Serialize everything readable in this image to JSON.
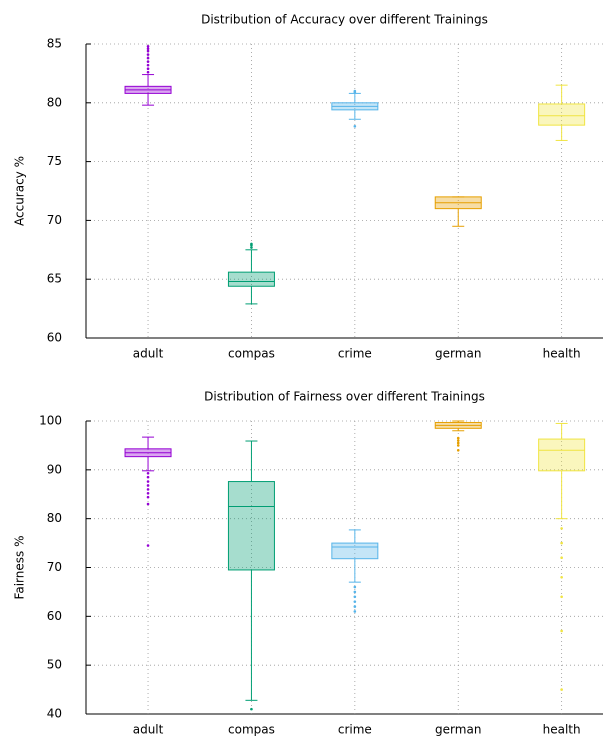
{
  "chart_data": [
    {
      "type": "box",
      "title": "Distribution of Accuracy over different Trainings",
      "ylabel": "Accuracy %",
      "categories": [
        "adult",
        "compas",
        "crime",
        "german",
        "health"
      ],
      "colors": [
        "#9400d3",
        "#009e73",
        "#56b4e9",
        "#e69f00",
        "#f0e442"
      ],
      "boxes": [
        {
          "min": 79.8,
          "q1": 80.8,
          "median": 81.1,
          "q3": 81.4,
          "max": 82.4,
          "outliers": [
            82.6,
            82.9,
            83.2,
            83.5,
            83.8,
            84.1,
            84.4,
            84.6,
            84.8
          ]
        },
        {
          "min": 62.9,
          "q1": 64.4,
          "median": 64.8,
          "q3": 65.6,
          "max": 67.5,
          "outliers": [
            67.7,
            67.9,
            68.0
          ]
        },
        {
          "min": 78.6,
          "q1": 79.4,
          "median": 79.7,
          "q3": 80.0,
          "max": 80.8,
          "outliers": [
            78.0,
            80.9,
            81.0
          ]
        },
        {
          "min": 69.5,
          "q1": 71.0,
          "median": 71.5,
          "q3": 72.0,
          "max": 72.0,
          "outliers": []
        },
        {
          "min": 76.8,
          "q1": 78.1,
          "median": 78.9,
          "q3": 79.9,
          "max": 81.5,
          "outliers": []
        }
      ],
      "ylim": [
        60,
        85
      ],
      "yticks": [
        60,
        65,
        70,
        75,
        80,
        85
      ],
      "grid": true
    },
    {
      "type": "box",
      "title": "Distribution of Fairness over different Trainings",
      "ylabel": "Fairness %",
      "categories": [
        "adult",
        "compas",
        "crime",
        "german",
        "health"
      ],
      "colors": [
        "#9400d3",
        "#009e73",
        "#56b4e9",
        "#e69f00",
        "#f0e442"
      ],
      "boxes": [
        {
          "min": 89.8,
          "q1": 92.7,
          "median": 93.5,
          "q3": 94.3,
          "max": 96.7,
          "outliers": [
            89.3,
            88.5,
            87.6,
            86.8,
            86,
            85.2,
            84.4,
            83,
            74.5
          ]
        },
        {
          "min": 42.8,
          "q1": 69.5,
          "median": 82.5,
          "q3": 87.6,
          "max": 95.9,
          "outliers": [
            41
          ]
        },
        {
          "min": 67,
          "q1": 71.8,
          "median": 74.2,
          "q3": 75.0,
          "max": 77.7,
          "outliers": [
            66,
            65,
            64,
            63,
            62,
            61
          ]
        },
        {
          "min": 98,
          "q1": 98.5,
          "median": 99.1,
          "q3": 99.7,
          "max": 100,
          "outliers": [
            96.5,
            96,
            95.5,
            95,
            94
          ]
        },
        {
          "min": 80,
          "q1": 89.8,
          "median": 94,
          "q3": 96.3,
          "max": 99.5,
          "outliers": [
            78,
            75,
            72,
            68,
            64,
            57,
            45
          ]
        }
      ],
      "ylim": [
        40,
        100
      ],
      "yticks": [
        40,
        50,
        60,
        70,
        80,
        90,
        100
      ],
      "grid": true
    }
  ]
}
